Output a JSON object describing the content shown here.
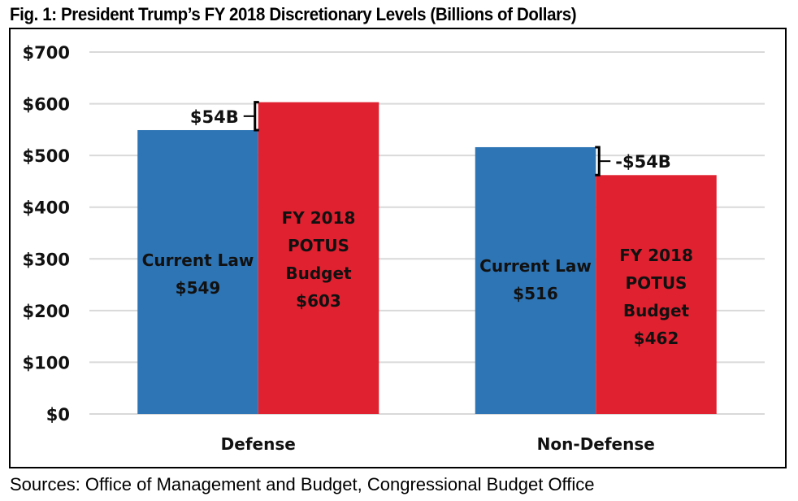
{
  "title": "Fig. 1: President Trump’s FY 2018 Discretionary Levels (Billions of Dollars)",
  "source": "Sources: Office of Management and Budget, Congressional Budget Office",
  "colors": {
    "current_law": "#2E75B6",
    "potus_budget": "#E02130",
    "grid": "#D9D9D9"
  },
  "chart_data": {
    "type": "bar",
    "title": "Fig. 1: President Trump’s FY 2018 Discretionary Levels (Billions of Dollars)",
    "xlabel": "",
    "ylabel": "",
    "ylim": [
      0,
      700
    ],
    "yticks": [
      0,
      100,
      200,
      300,
      400,
      500,
      600,
      700
    ],
    "ytick_labels": [
      "$0",
      "$100",
      "$200",
      "$300",
      "$400",
      "$500",
      "$600",
      "$700"
    ],
    "grid": true,
    "legend": "none",
    "categories": [
      "Defense",
      "Non-Defense"
    ],
    "series": [
      {
        "name": "Current Law",
        "values": [
          549,
          516
        ],
        "labels": [
          [
            "Current Law",
            "$549"
          ],
          [
            "Current Law",
            "$516"
          ]
        ]
      },
      {
        "name": "FY 2018 POTUS Budget",
        "values": [
          603,
          462
        ],
        "labels": [
          [
            "FY 2018",
            "POTUS",
            "Budget",
            "$603"
          ],
          [
            "FY 2018",
            "POTUS",
            "Budget",
            "$462"
          ]
        ]
      }
    ],
    "annotations": [
      {
        "category": "Defense",
        "text": "$54B",
        "side": "left"
      },
      {
        "category": "Non-Defense",
        "text": "-$54B",
        "side": "right"
      }
    ]
  }
}
